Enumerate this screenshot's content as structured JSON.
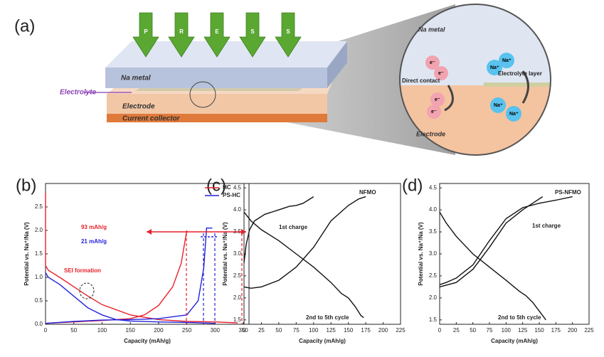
{
  "panel_labels": [
    "(a)",
    "(b)",
    "(c)",
    "(d)"
  ],
  "schematic": {
    "press": [
      "P",
      "R",
      "E",
      "S",
      "S"
    ],
    "na_metal": "Na metal",
    "electrolyte": "Electrolyte",
    "electrode": "Electrode",
    "current_collector": "Current collector",
    "zoom": {
      "na_metal": "Na metal",
      "direct_contact": "Direct contact",
      "electrolyte_layer": "Electrolyte layer",
      "electrode": "Electrode",
      "electron": "e⁻",
      "sodium": "Na⁺"
    }
  },
  "chart_data": [
    {
      "type": "line",
      "xlabel": "Capacity (mAh/g)",
      "ylabel": "Potential vs. Na⁺/Na (V)",
      "xlim": [
        0,
        360
      ],
      "xticks": [
        0,
        50,
        100,
        150,
        200,
        250,
        300,
        350
      ],
      "ylim": [
        0,
        3
      ],
      "yticks": [
        {
          "value": 0,
          "label": "0.0"
        },
        0.5,
        {
          "value": 1,
          "label": "1.0"
        },
        1.5,
        {
          "value": 2,
          "label": "2.0"
        },
        2.5
      ],
      "legend": "upper right",
      "annotations": [
        "93 mAh/g",
        "21 mAh/g",
        "SEI formation"
      ],
      "series": [
        {
          "name": "HC",
          "color": "#e8202a",
          "x": [
            0,
            0,
            5,
            25,
            50,
            75,
            100,
            150,
            200,
            250,
            300,
            340,
            null,
            0,
            50,
            100,
            150,
            175,
            200,
            225,
            240,
            250
          ],
          "values": [
            2.8,
            1.25,
            1.15,
            1.0,
            0.8,
            0.6,
            0.42,
            0.2,
            0.1,
            0.06,
            0.05,
            0.03,
            null,
            0.02,
            0.05,
            0.08,
            0.12,
            0.2,
            0.4,
            0.8,
            1.3,
            2.0
          ]
        },
        {
          "name": "PS-HC",
          "color": "#2222dd",
          "x": [
            0,
            5,
            25,
            50,
            75,
            100,
            125,
            150,
            200,
            250,
            300,
            null,
            0,
            50,
            100,
            150,
            200,
            250,
            270,
            280,
            285,
            295
          ],
          "values": [
            1.1,
            1.0,
            0.85,
            0.6,
            0.35,
            0.2,
            0.1,
            0.07,
            0.05,
            0.04,
            0.02,
            null,
            0.02,
            0.06,
            0.09,
            0.1,
            0.12,
            0.2,
            0.5,
            1.2,
            2.05,
            2.05
          ]
        }
      ]
    },
    {
      "type": "line",
      "xlabel": "Capacity (mAh/g)",
      "ylabel": "Potential vs. Na⁺/Na (V)",
      "xlim": [
        0,
        225
      ],
      "xticks": [
        0,
        25,
        50,
        75,
        100,
        125,
        150,
        175,
        200,
        225
      ],
      "ylim": [
        1.4,
        4.6
      ],
      "yticks": [
        1.5,
        {
          "value": 2,
          "label": "2.0"
        },
        2.5,
        {
          "value": 3,
          "label": "3.0"
        },
        3.5,
        {
          "value": 4,
          "label": "4.0"
        },
        4.5
      ],
      "annotations": [
        "NFMO",
        "1st charge",
        "2nd to 5th cycle"
      ],
      "series": [
        {
          "color": "#111",
          "x": [
            0,
            3,
            8,
            15,
            30,
            50,
            65,
            75,
            85,
            100
          ],
          "values": [
            2.8,
            3.2,
            3.55,
            3.75,
            3.9,
            4.0,
            4.08,
            4.1,
            4.15,
            4.3
          ]
        },
        {
          "color": "#111",
          "x": [
            0,
            10,
            25,
            50,
            75,
            100,
            125,
            140,
            150,
            160,
            168,
            172
          ],
          "values": [
            3.95,
            3.75,
            3.55,
            3.3,
            3.0,
            2.7,
            2.35,
            2.1,
            2.0,
            1.8,
            1.6,
            1.55
          ]
        },
        {
          "color": "#111",
          "x": [
            0,
            10,
            25,
            50,
            75,
            100,
            125,
            150,
            165,
            175
          ],
          "values": [
            2.25,
            2.22,
            2.25,
            2.4,
            2.7,
            3.15,
            3.75,
            4.1,
            4.25,
            4.3
          ]
        }
      ]
    },
    {
      "type": "line",
      "xlabel": "Capacity (mAh/g)",
      "ylabel": "Potential vs. Na⁺/Na (V)",
      "xlim": [
        0,
        225
      ],
      "xticks": [
        0,
        25,
        50,
        75,
        100,
        125,
        150,
        175,
        200,
        225
      ],
      "ylim": [
        1.4,
        4.6
      ],
      "yticks": [
        1.5,
        {
          "value": 2,
          "label": "2.0"
        },
        2.5,
        {
          "value": 3,
          "label": "3.0"
        },
        3.5,
        {
          "value": 4,
          "label": "4.0"
        },
        4.5
      ],
      "annotations": [
        "PS-NFMO",
        "1st charge",
        "2nd to 5th cycle"
      ],
      "series": [
        {
          "color": "#111",
          "x": [
            0,
            10,
            25,
            50,
            75,
            100,
            125,
            150,
            175,
            200
          ],
          "values": [
            2.3,
            2.35,
            2.45,
            2.75,
            3.3,
            3.8,
            4.05,
            4.15,
            4.22,
            4.3
          ]
        },
        {
          "color": "#111",
          "x": [
            0,
            10,
            25,
            50,
            75,
            100,
            120,
            130,
            140,
            150,
            160
          ],
          "values": [
            3.95,
            3.7,
            3.4,
            3.0,
            2.7,
            2.4,
            2.15,
            2.05,
            1.9,
            1.7,
            1.5
          ]
        },
        {
          "color": "#111",
          "x": [
            0,
            25,
            50,
            75,
            100,
            125,
            140,
            155
          ],
          "values": [
            2.25,
            2.35,
            2.65,
            3.15,
            3.7,
            4.0,
            4.15,
            4.3
          ]
        }
      ]
    }
  ]
}
